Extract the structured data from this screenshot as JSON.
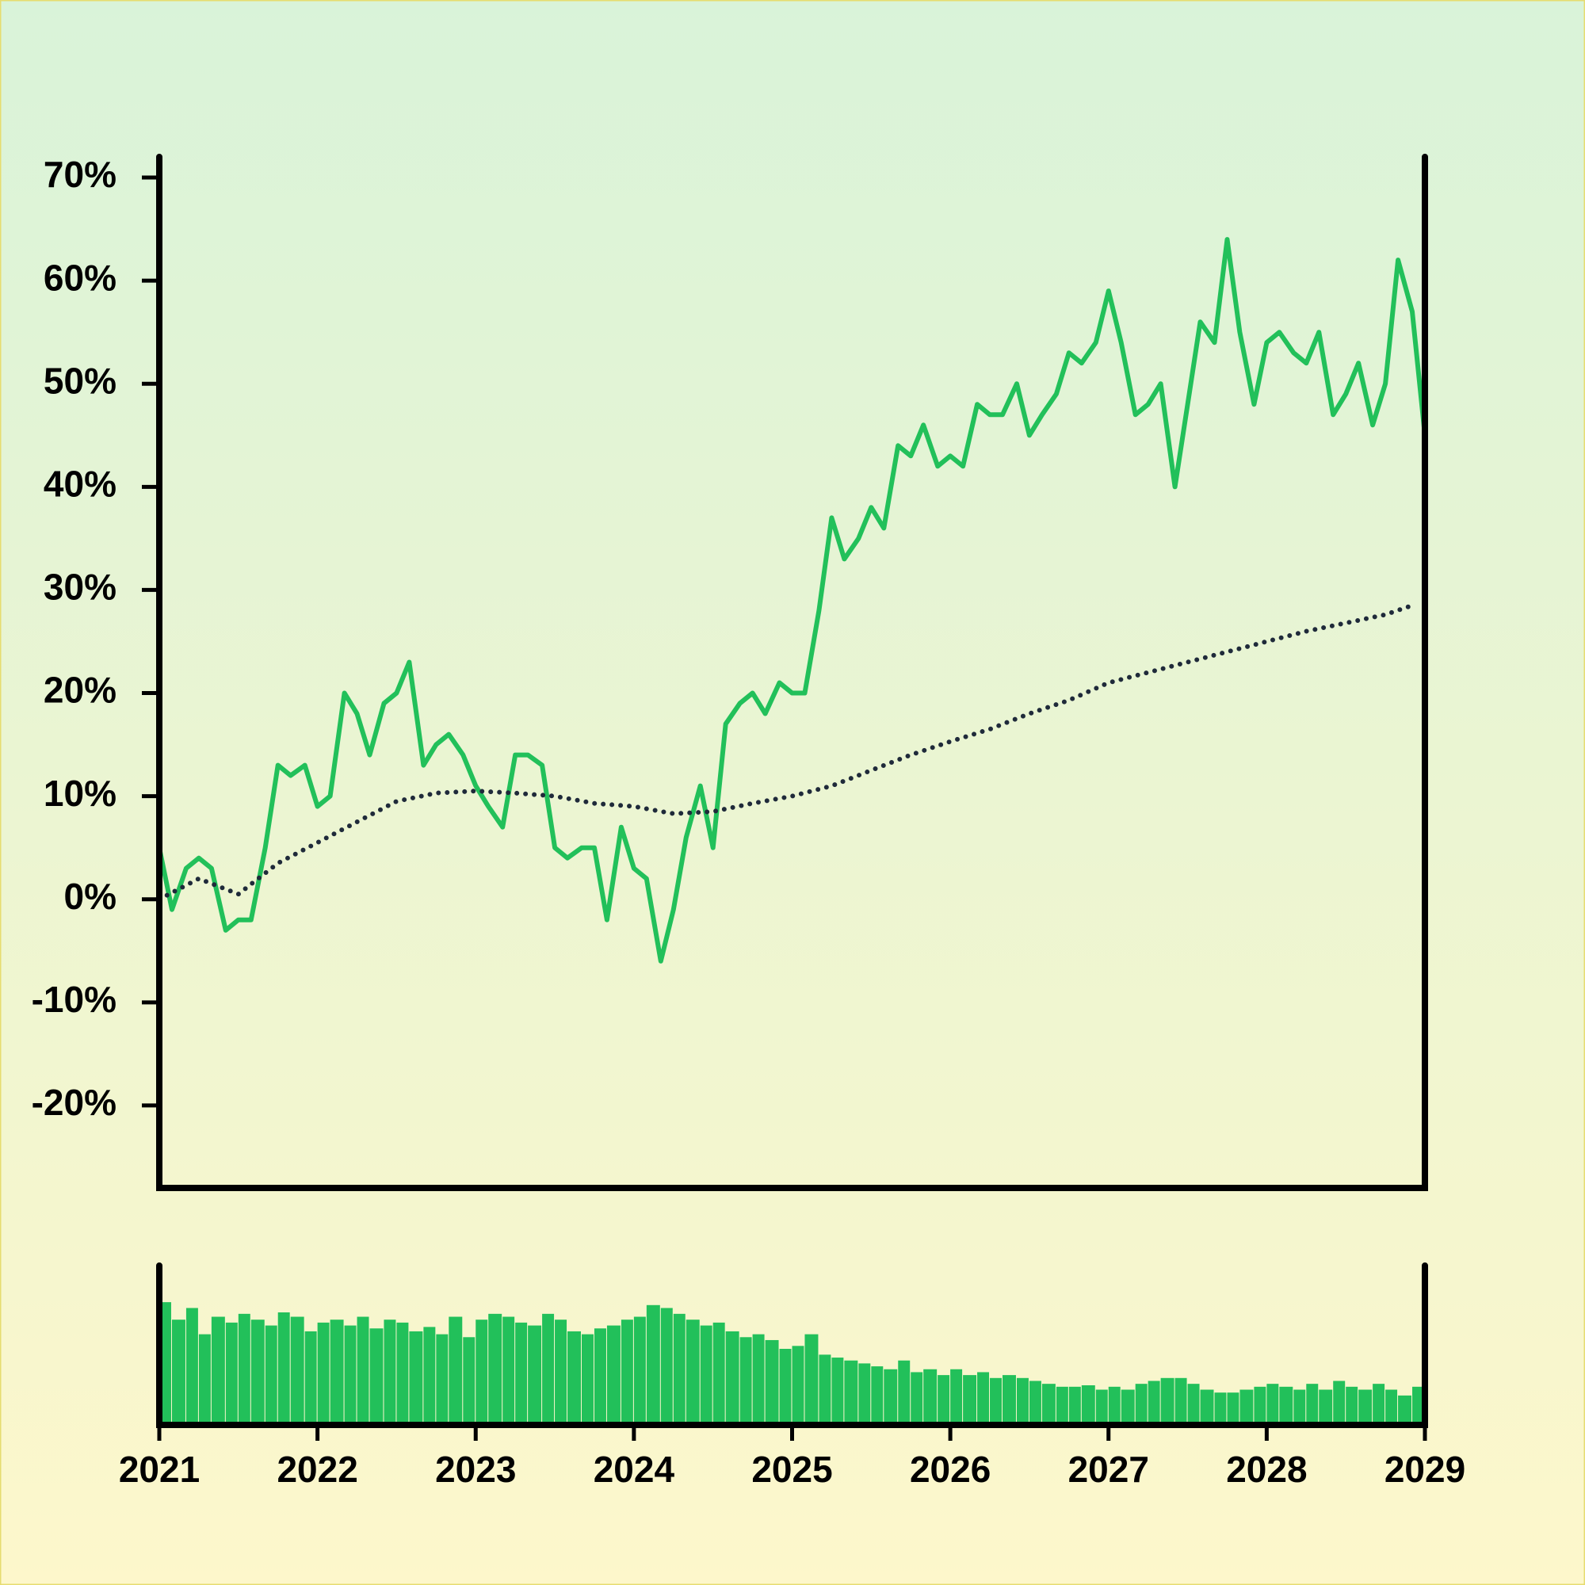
{
  "chart_data": [
    {
      "type": "line",
      "xlim": [
        2021,
        2029
      ],
      "ylim": [
        -28,
        72
      ],
      "yticks": [
        {
          "value": -20,
          "label": "-20%"
        },
        {
          "value": -10,
          "label": "-10%"
        },
        {
          "value": 0,
          "label": "0%"
        },
        {
          "value": 10,
          "label": "10%"
        },
        {
          "value": 20,
          "label": "20%"
        },
        {
          "value": 30,
          "label": "30%"
        },
        {
          "value": 40,
          "label": "40%"
        },
        {
          "value": 50,
          "label": "50%"
        },
        {
          "value": 60,
          "label": "60%"
        },
        {
          "value": 70,
          "label": "70%"
        }
      ],
      "x": [
        2021.0,
        2021.08,
        2021.17,
        2021.25,
        2021.33,
        2021.42,
        2021.5,
        2021.58,
        2021.67,
        2021.75,
        2021.83,
        2021.92,
        2022.0,
        2022.08,
        2022.17,
        2022.25,
        2022.33,
        2022.42,
        2022.5,
        2022.58,
        2022.67,
        2022.75,
        2022.83,
        2022.92,
        2023.0,
        2023.08,
        2023.17,
        2023.25,
        2023.33,
        2023.42,
        2023.5,
        2023.58,
        2023.67,
        2023.75,
        2023.83,
        2023.92,
        2024.0,
        2024.08,
        2024.17,
        2024.25,
        2024.33,
        2024.42,
        2024.5,
        2024.58,
        2024.67,
        2024.75,
        2024.83,
        2024.92,
        2025.0,
        2025.08,
        2025.17,
        2025.25,
        2025.33,
        2025.42,
        2025.5,
        2025.58,
        2025.67,
        2025.75,
        2025.83,
        2025.92,
        2026.0,
        2026.08,
        2026.17,
        2026.25,
        2026.33,
        2026.42,
        2026.5,
        2026.58,
        2026.67,
        2026.75,
        2026.83,
        2026.92,
        2027.0,
        2027.08,
        2027.17,
        2027.25,
        2027.33,
        2027.42,
        2027.5,
        2027.58,
        2027.67,
        2027.75,
        2027.83,
        2027.92,
        2028.0,
        2028.08,
        2028.17,
        2028.25,
        2028.33,
        2028.42,
        2028.5,
        2028.58,
        2028.67,
        2028.75,
        2028.83,
        2028.92,
        2029.0
      ],
      "series": [
        {
          "color": "#22c05a",
          "values": [
            5,
            -1,
            3,
            4,
            3,
            -3,
            -2,
            -2,
            5,
            13,
            12,
            13,
            9,
            10,
            20,
            18,
            14,
            19,
            20,
            23,
            13,
            15,
            16,
            14,
            11,
            9,
            7,
            14,
            14,
            13,
            5,
            4,
            5,
            5,
            -2,
            7,
            3,
            2,
            -6,
            -1,
            6,
            11,
            5,
            17,
            19,
            20,
            18,
            21,
            20,
            20,
            28,
            37,
            33,
            35,
            38,
            36,
            44,
            43,
            46,
            42,
            43,
            42,
            48,
            47,
            47,
            50,
            45,
            47,
            49,
            53,
            52,
            54,
            59,
            54,
            47,
            48,
            50,
            40,
            48,
            56,
            54,
            64,
            55,
            48,
            54,
            55,
            53,
            52,
            55,
            47,
            49,
            52,
            46,
            50,
            62,
            57,
            45
          ]
        },
        {
          "color": "#1f2a3a",
          "style": "dotted",
          "x": [
            2021.0,
            2021.25,
            2021.5,
            2021.75,
            2022.0,
            2022.25,
            2022.5,
            2022.75,
            2023.0,
            2023.25,
            2023.5,
            2023.75,
            2024.0,
            2024.25,
            2024.5,
            2024.75,
            2025.0,
            2025.25,
            2025.5,
            2025.75,
            2026.0,
            2026.25,
            2026.5,
            2026.75,
            2027.0,
            2027.25,
            2027.5,
            2027.75,
            2028.0,
            2028.25,
            2028.5,
            2028.75,
            2028.92
          ],
          "values": [
            0,
            2,
            0.5,
            3.5,
            5.5,
            7.5,
            9.5,
            10.3,
            10.5,
            10.3,
            10,
            9.3,
            9,
            8.3,
            8.5,
            9.3,
            10,
            11,
            12.5,
            14,
            15.3,
            16.5,
            18,
            19.3,
            21,
            22,
            23,
            24,
            25,
            26,
            26.8,
            27.6,
            28.5
          ]
        }
      ]
    },
    {
      "type": "bar",
      "xlim": [
        2021,
        2029
      ],
      "ylim": [
        0,
        100
      ],
      "xticks": [
        2021,
        2022,
        2023,
        2024,
        2025,
        2026,
        2027,
        2028,
        2029
      ],
      "color": "#22c05a",
      "x": [
        2021.0,
        2021.08,
        2021.17,
        2021.25,
        2021.33,
        2021.42,
        2021.5,
        2021.58,
        2021.67,
        2021.75,
        2021.83,
        2021.92,
        2022.0,
        2022.08,
        2022.17,
        2022.25,
        2022.33,
        2022.42,
        2022.5,
        2022.58,
        2022.67,
        2022.75,
        2022.83,
        2022.92,
        2023.0,
        2023.08,
        2023.17,
        2023.25,
        2023.33,
        2023.42,
        2023.5,
        2023.58,
        2023.67,
        2023.75,
        2023.83,
        2023.92,
        2024.0,
        2024.08,
        2024.17,
        2024.25,
        2024.33,
        2024.42,
        2024.5,
        2024.58,
        2024.67,
        2024.75,
        2024.83,
        2024.92,
        2025.0,
        2025.08,
        2025.17,
        2025.25,
        2025.33,
        2025.42,
        2025.5,
        2025.58,
        2025.67,
        2025.75,
        2025.83,
        2025.92,
        2026.0,
        2026.08,
        2026.17,
        2026.25,
        2026.33,
        2026.42,
        2026.5,
        2026.58,
        2026.67,
        2026.75,
        2026.83,
        2026.92,
        2027.0,
        2027.08,
        2027.17,
        2027.25,
        2027.33,
        2027.42,
        2027.5,
        2027.58,
        2027.67,
        2027.75,
        2027.83,
        2027.92,
        2028.0,
        2028.08,
        2028.17,
        2028.25,
        2028.33,
        2028.42,
        2028.5,
        2028.58,
        2028.67,
        2028.75,
        2028.83,
        2028.92
      ],
      "values": [
        82,
        70,
        78,
        60,
        72,
        68,
        74,
        70,
        66,
        75,
        72,
        62,
        68,
        70,
        66,
        72,
        64,
        70,
        68,
        62,
        65,
        60,
        72,
        58,
        70,
        74,
        72,
        68,
        66,
        74,
        70,
        62,
        60,
        64,
        66,
        70,
        72,
        80,
        78,
        74,
        70,
        66,
        68,
        62,
        58,
        60,
        56,
        50,
        52,
        60,
        46,
        44,
        42,
        40,
        38,
        36,
        42,
        34,
        36,
        32,
        36,
        32,
        34,
        30,
        32,
        30,
        28,
        26,
        24,
        24,
        25,
        22,
        24,
        22,
        26,
        28,
        30,
        30,
        26,
        22,
        20,
        20,
        22,
        24,
        26,
        24,
        22,
        26,
        22,
        28,
        24,
        22,
        26,
        22,
        18,
        24
      ]
    }
  ]
}
